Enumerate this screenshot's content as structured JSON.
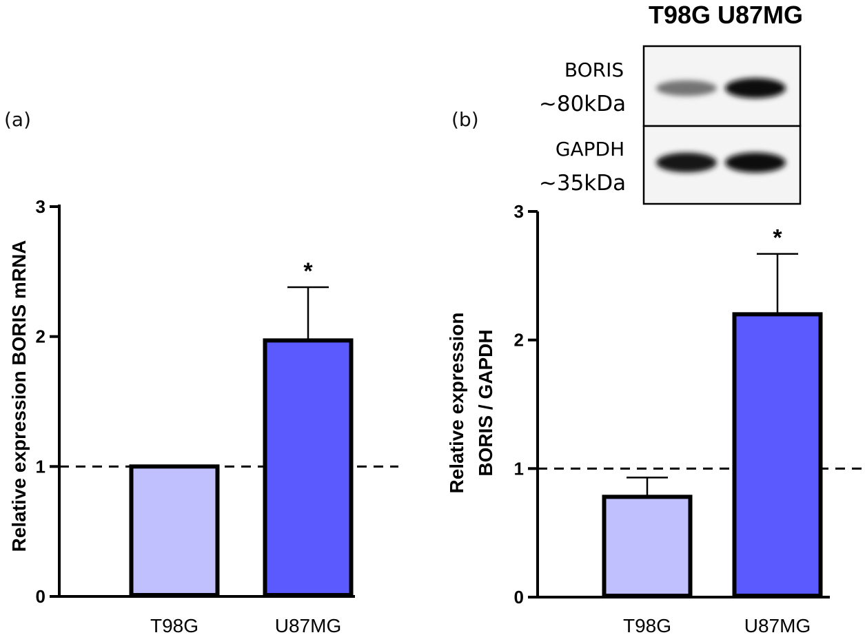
{
  "chart_data": [
    {
      "panel": "(a)",
      "type": "bar",
      "categories": [
        "T98G",
        "U87MG"
      ],
      "values": [
        1.0,
        1.97
      ],
      "errors": [
        0,
        0.41
      ],
      "significance": [
        "",
        "*"
      ],
      "colors": [
        "#c0c0ff",
        "#5a5aff"
      ],
      "ylabel": "Relative expression BORIS mRNA",
      "ylim": [
        0,
        3
      ],
      "yticks": [
        "0",
        "1",
        "2",
        "3"
      ],
      "reference_line": 1
    },
    {
      "panel": "(b)",
      "type": "bar",
      "categories": [
        "T98G",
        "U87MG"
      ],
      "values": [
        0.78,
        2.2
      ],
      "errors": [
        0.15,
        0.47
      ],
      "significance": [
        "",
        "*"
      ],
      "colors": [
        "#c0c0ff",
        "#5a5aff"
      ],
      "ylabel_lines": [
        "Relative expression",
        "BORIS / GAPDH"
      ],
      "ylim": [
        0,
        3
      ],
      "yticks": [
        "0",
        "1",
        "2",
        "3"
      ],
      "reference_line": 1
    }
  ],
  "blot": {
    "title": "T98G U87MG",
    "rows": [
      {
        "protein": "BORIS",
        "size": "~80kDa",
        "band_intensity": [
          0.55,
          0.95
        ]
      },
      {
        "protein": "GAPDH",
        "size": "~35kDa",
        "band_intensity": [
          0.92,
          0.95
        ]
      }
    ]
  }
}
